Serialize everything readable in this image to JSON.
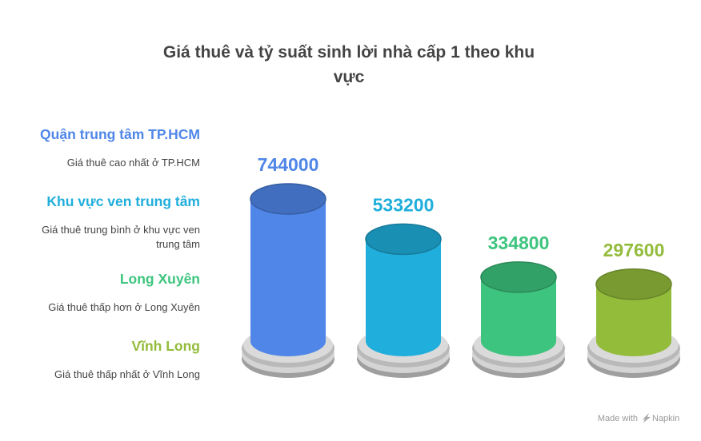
{
  "chart_data": {
    "type": "bar",
    "title": "Giá thuê và tỷ suất sinh lời nhà cấp 1 theo khu vực",
    "title_lines": [
      "Giá thuê và tỷ suất sinh lời nhà cấp 1 theo khu",
      "vực"
    ],
    "categories": [
      "Quận trung tâm TP.HCM",
      "Khu vực ven trung tâm",
      "Long Xuyên",
      "Vĩnh Long"
    ],
    "values": [
      744000,
      533200,
      334800,
      297600
    ],
    "descriptions": [
      [
        "Giá thuê cao nhất ở TP.HCM"
      ],
      [
        "Giá thuê trung bình ở khu vực ven",
        "trung tâm"
      ],
      [
        "Giá thuê thấp hơn ở Long Xuyên"
      ],
      [
        "Giá thuê thấp nhất ở Vĩnh Long"
      ]
    ],
    "colors": [
      "#4F86E8",
      "#20AEDC",
      "#3DC47E",
      "#93BC3B"
    ],
    "xlabel": "",
    "ylabel": "",
    "ylim": [
      0,
      744000
    ],
    "grid": false,
    "legend": "left"
  },
  "footer": {
    "made_with": "Made with",
    "brand": "Napkin"
  },
  "icons": {
    "brand_logo": "napkin-logo-icon"
  }
}
